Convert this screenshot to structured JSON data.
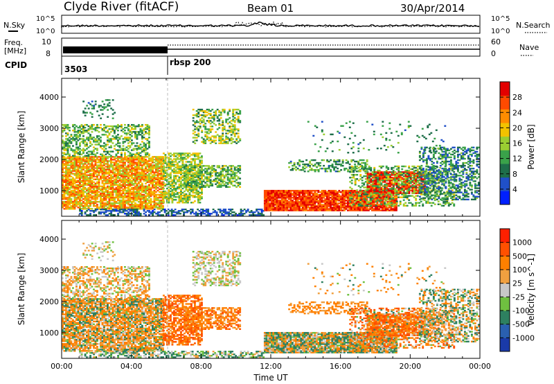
{
  "header": {
    "title": "Clyde River (fitACF)",
    "beam": "Beam 01",
    "date": "30/Apr/2014"
  },
  "strips": {
    "nsky": {
      "label": "N.Sky",
      "left_ticks": [
        "10^5",
        "10^0"
      ],
      "right_label": "N.Search",
      "right_ticks": [
        "10^5",
        "10^0"
      ]
    },
    "freq": {
      "label_line1": "Freq.",
      "label_line2": "[MHz]",
      "left_ticks": [
        "10",
        "8"
      ],
      "right_label": "Nave",
      "right_ticks": [
        "60",
        "0"
      ]
    },
    "cpid": {
      "label": "CPID",
      "segments": [
        {
          "label": "3503",
          "start_h": 0
        },
        {
          "label": "rbsp 200",
          "start_h": 6
        }
      ]
    }
  },
  "chart_data": [
    {
      "type": "heatmap",
      "xlabel": "Time UT",
      "ylabel": "Slant Range [km]",
      "xlim": [
        0,
        24
      ],
      "ylim": [
        180,
        4600
      ],
      "x_ticks": [
        "00:00",
        "04:00",
        "08:00",
        "12:00",
        "16:00",
        "20:00",
        "00:00"
      ],
      "y_ticks": [
        1000,
        2000,
        3000,
        4000
      ],
      "colorbar": {
        "label": "Power [dB]",
        "ticks": [
          28,
          24,
          20,
          16,
          12,
          8,
          4
        ],
        "range": [
          0,
          30
        ],
        "colors": [
          "#0020ff",
          "#2050c8",
          "#1e6e4a",
          "#3aa24a",
          "#9acd32",
          "#f2c200",
          "#ff8c00",
          "#ff4a00",
          "#e30000"
        ]
      }
    },
    {
      "type": "heatmap",
      "xlabel": "Time UT",
      "ylabel": "Slant Range [km]",
      "xlim": [
        0,
        24
      ],
      "ylim": [
        180,
        4600
      ],
      "x_ticks": [
        "00:00",
        "04:00",
        "08:00",
        "12:00",
        "16:00",
        "20:00",
        "00:00"
      ],
      "y_ticks": [
        1000,
        2000,
        3000,
        4000
      ],
      "colorbar": {
        "label": "Velocity [m s^-1]",
        "ticks": [
          "1000",
          "500",
          "100",
          "25",
          "-25",
          "-100",
          "-500",
          "-1000"
        ],
        "colors": [
          "#1a3aa8",
          "#2a60b0",
          "#2e8060",
          "#6fc040",
          "#c8c8c8",
          "#f0a040",
          "#ff8000",
          "#ff5000",
          "#ff2000"
        ]
      }
    }
  ],
  "colors": {
    "bar_dark": "#000000",
    "axis": "#000000",
    "grid_marker": "#aaaaaa"
  }
}
